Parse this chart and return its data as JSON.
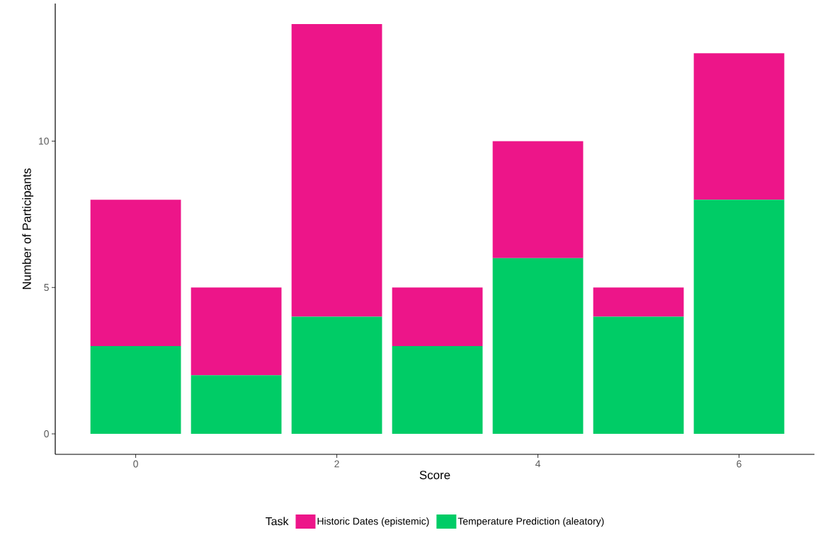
{
  "chart_data": {
    "type": "bar",
    "stacked": true,
    "xlabel": "Score",
    "ylabel": "Number of Participants",
    "legend_title": "Task",
    "legend": "bottom",
    "grid": false,
    "x": [
      0,
      1,
      2,
      3,
      4,
      5,
      6
    ],
    "series": [
      {
        "name": "Temperature Prediction (aleatory)",
        "color": "#00cc66",
        "values": [
          3,
          2,
          4,
          3,
          6,
          4,
          8
        ]
      },
      {
        "name": "Historic Dates (epistemic)",
        "color": "#ed1589",
        "values": [
          5,
          3,
          10,
          2,
          4,
          1,
          5
        ]
      }
    ],
    "xlim": [
      -0.8,
      6.75
    ],
    "xticks": [
      0,
      2,
      4,
      6
    ],
    "ylim": [
      -0.7,
      14.7
    ],
    "yticks": [
      0,
      5,
      10
    ]
  }
}
